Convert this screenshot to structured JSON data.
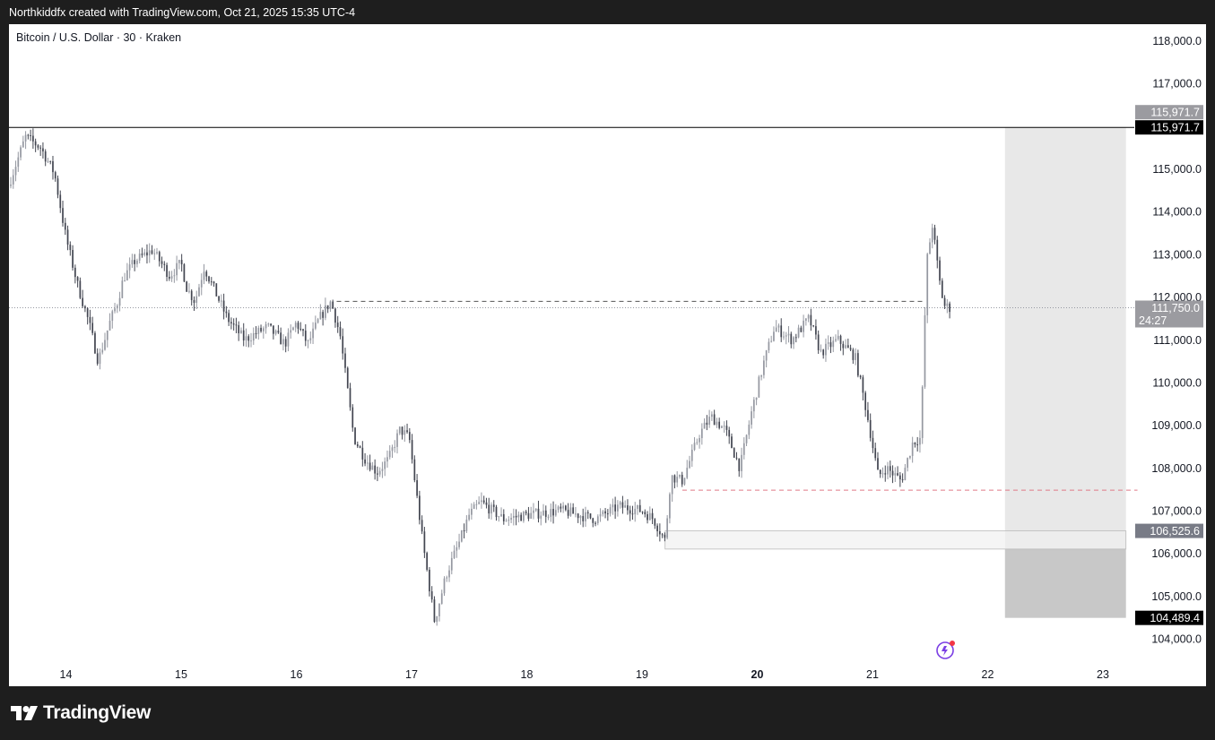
{
  "header": {
    "text": "Northkiddfx created with TradingView.com, Oct 21, 2025 15:35 UTC-4"
  },
  "footer": {
    "brand": "TradingView"
  },
  "colors": {
    "up": "#9598a1",
    "down": "#434651",
    "red_dash": "#e07a86",
    "dark_dash": "#555555",
    "zone_fill": "#e8e8e8",
    "zone_dark_fill": "#c8c8c8",
    "box_fill": "#f3f3f3",
    "tag_dark": "#000000",
    "tag_grey": "#9b9ba0"
  },
  "chart_data": {
    "type": "candlestick",
    "title": "Bitcoin / U.S. Dollar · 30 · Kraken",
    "xlabel": "",
    "ylabel": "",
    "ylim": [
      103600,
      118500
    ],
    "grid": false,
    "x_ticks": [
      {
        "label": "14",
        "day": 14,
        "bold": false
      },
      {
        "label": "15",
        "day": 15,
        "bold": false
      },
      {
        "label": "16",
        "day": 16,
        "bold": false
      },
      {
        "label": "17",
        "day": 17,
        "bold": false
      },
      {
        "label": "18",
        "day": 18,
        "bold": false
      },
      {
        "label": "19",
        "day": 19,
        "bold": false
      },
      {
        "label": "20",
        "day": 20,
        "bold": true
      },
      {
        "label": "21",
        "day": 21,
        "bold": false
      },
      {
        "label": "22",
        "day": 22,
        "bold": false
      },
      {
        "label": "23",
        "day": 23,
        "bold": false
      }
    ],
    "y_ticks": [
      {
        "label": "118,000.0",
        "value": 118000
      },
      {
        "label": "117,000.0",
        "value": 117000
      },
      {
        "label": "115,000.0",
        "value": 115000
      },
      {
        "label": "114,000.0",
        "value": 114000
      },
      {
        "label": "113,000.0",
        "value": 113000
      },
      {
        "label": "112,000.0",
        "value": 112000
      },
      {
        "label": "111,000.0",
        "value": 111000
      },
      {
        "label": "110,000.0",
        "value": 110000
      },
      {
        "label": "109,000.0",
        "value": 109000
      },
      {
        "label": "108,000.0",
        "value": 108000
      },
      {
        "label": "107,000.0",
        "value": 107000
      },
      {
        "label": "106,000.0",
        "value": 106000
      },
      {
        "label": "105,000.0",
        "value": 105000
      },
      {
        "label": "104,000.0",
        "value": 104000
      }
    ],
    "price_path": [
      [
        13.5,
        114600
      ],
      [
        13.65,
        115750
      ],
      [
        13.78,
        115500
      ],
      [
        13.9,
        114900
      ],
      [
        14.0,
        113400
      ],
      [
        14.1,
        112300
      ],
      [
        14.2,
        111400
      ],
      [
        14.28,
        110500
      ],
      [
        14.38,
        111400
      ],
      [
        14.45,
        111900
      ],
      [
        14.5,
        112450
      ],
      [
        14.6,
        112850
      ],
      [
        14.75,
        113100
      ],
      [
        14.9,
        112500
      ],
      [
        15.0,
        112800
      ],
      [
        15.05,
        112200
      ],
      [
        15.12,
        111900
      ],
      [
        15.2,
        112700
      ],
      [
        15.3,
        112100
      ],
      [
        15.4,
        111500
      ],
      [
        15.55,
        111000
      ],
      [
        15.75,
        111300
      ],
      [
        15.9,
        110900
      ],
      [
        16.0,
        111400
      ],
      [
        16.1,
        110900
      ],
      [
        16.2,
        111500
      ],
      [
        16.3,
        111900
      ],
      [
        16.38,
        111100
      ],
      [
        16.5,
        108700
      ],
      [
        16.6,
        108200
      ],
      [
        16.7,
        107900
      ],
      [
        16.8,
        108200
      ],
      [
        16.9,
        108900
      ],
      [
        16.98,
        108700
      ],
      [
        17.1,
        106200
      ],
      [
        17.2,
        104400
      ],
      [
        17.3,
        105500
      ],
      [
        17.42,
        106300
      ],
      [
        17.5,
        106900
      ],
      [
        17.6,
        107200
      ],
      [
        17.8,
        106800
      ],
      [
        18.0,
        106900
      ],
      [
        18.3,
        107000
      ],
      [
        18.6,
        106800
      ],
      [
        18.8,
        107100
      ],
      [
        19.0,
        107000
      ],
      [
        19.1,
        106800
      ],
      [
        19.2,
        106300
      ],
      [
        19.25,
        107800
      ],
      [
        19.35,
        107700
      ],
      [
        19.5,
        108800
      ],
      [
        19.6,
        109200
      ],
      [
        19.72,
        108900
      ],
      [
        19.85,
        108000
      ],
      [
        19.95,
        109300
      ],
      [
        20.05,
        110400
      ],
      [
        20.15,
        111300
      ],
      [
        20.3,
        111000
      ],
      [
        20.45,
        111500
      ],
      [
        20.55,
        110700
      ],
      [
        20.7,
        111000
      ],
      [
        20.85,
        110600
      ],
      [
        20.95,
        109300
      ],
      [
        21.05,
        107800
      ],
      [
        21.12,
        108000
      ],
      [
        21.25,
        107700
      ],
      [
        21.35,
        108600
      ],
      [
        21.42,
        108700
      ],
      [
        21.47,
        112800
      ],
      [
        21.52,
        113700
      ],
      [
        21.58,
        112400
      ],
      [
        21.62,
        111800
      ],
      [
        21.67,
        111750
      ]
    ],
    "candle_count": 380,
    "last_price": {
      "value": 111750.0,
      "label": "111,750.0",
      "countdown": "24:27"
    },
    "horizontal_line": {
      "value": 115971.7,
      "label": "115,971.7"
    },
    "trend_line_dashed": {
      "value": 111900,
      "from_day": 16.35,
      "to_day": 21.45
    },
    "support_line_dashed": {
      "value": 107480,
      "from_day": 19.35,
      "to_day": 23.3
    },
    "box": {
      "top": 106525.6,
      "bottom": 106100,
      "from_day": 19.2,
      "to_day": 23.2,
      "label": "106,525.6"
    },
    "position_zone": {
      "from_day": 22.15,
      "to_day": 23.2,
      "top": 115971.7,
      "entry": 106525.6,
      "bottom": 104489.4,
      "top_label": "115,971.7",
      "bottom_label": "104,489.4"
    }
  }
}
